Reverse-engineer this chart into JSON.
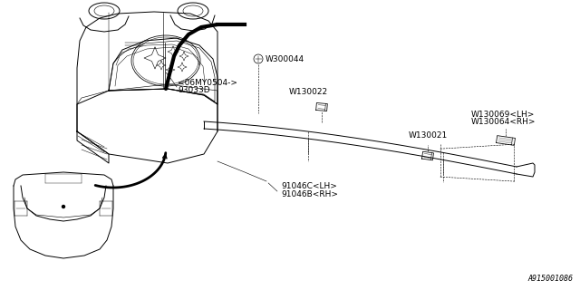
{
  "bg_color": "#ffffff",
  "lc": "#000000",
  "gray": "#888888",
  "lw_main": 0.7,
  "lw_thick": 2.5,
  "lw_thin": 0.4,
  "fs": 6.5,
  "corner_label": "A915001086",
  "labels": {
    "p91046B": "91046B<RH>",
    "p91046C": "91046C<LH>",
    "W130021": "W130021",
    "W130022": "W130022",
    "W130064": "W130064<RH>",
    "W130069": "W130069<LH>",
    "93033D": "93033D",
    "06MY0504": "<06MY0504->",
    "W300044": "W300044"
  }
}
